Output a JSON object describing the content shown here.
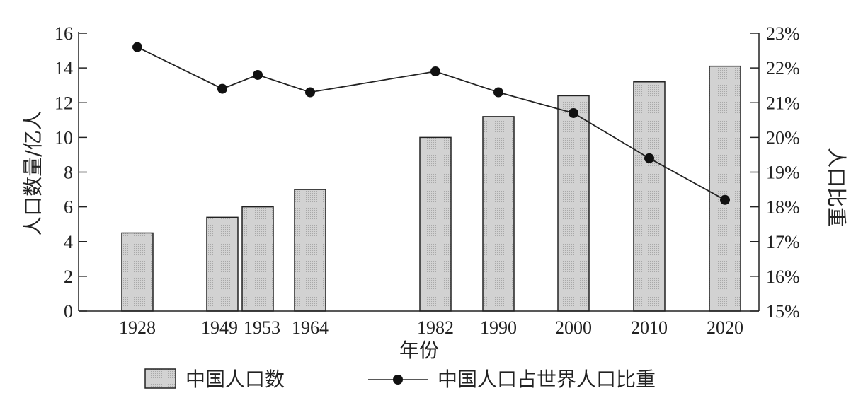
{
  "chart_data": {
    "type": "bar+line",
    "categories": [
      "1928",
      "1949",
      "1953",
      "1964",
      "1982",
      "1990",
      "2000",
      "2010",
      "2020"
    ],
    "xlabel": "年份",
    "ylabel_left": "人口数量/亿人",
    "ylabel_right": "人口比重",
    "ylim_left": [
      0,
      16
    ],
    "yticks_left": [
      "0",
      "2",
      "4",
      "6",
      "8",
      "10",
      "12",
      "14",
      "16"
    ],
    "ylim_right": [
      15,
      23
    ],
    "yticks_right": [
      "15%",
      "16%",
      "17%",
      "18%",
      "19%",
      "20%",
      "21%",
      "22%",
      "23%"
    ],
    "grid": false,
    "legend_position": "bottom",
    "series": [
      {
        "name": "中国人口数",
        "type": "bar",
        "axis": "left",
        "color": "#cccccc",
        "values": [
          4.5,
          5.4,
          6.0,
          7.0,
          10.0,
          11.2,
          12.4,
          13.2,
          14.1
        ]
      },
      {
        "name": "中国人口占世界人口比重",
        "type": "line",
        "axis": "right",
        "unit": "%",
        "color": "#111111",
        "values": [
          22.6,
          21.4,
          21.8,
          21.3,
          21.9,
          21.3,
          20.7,
          19.4,
          18.2
        ]
      }
    ]
  }
}
